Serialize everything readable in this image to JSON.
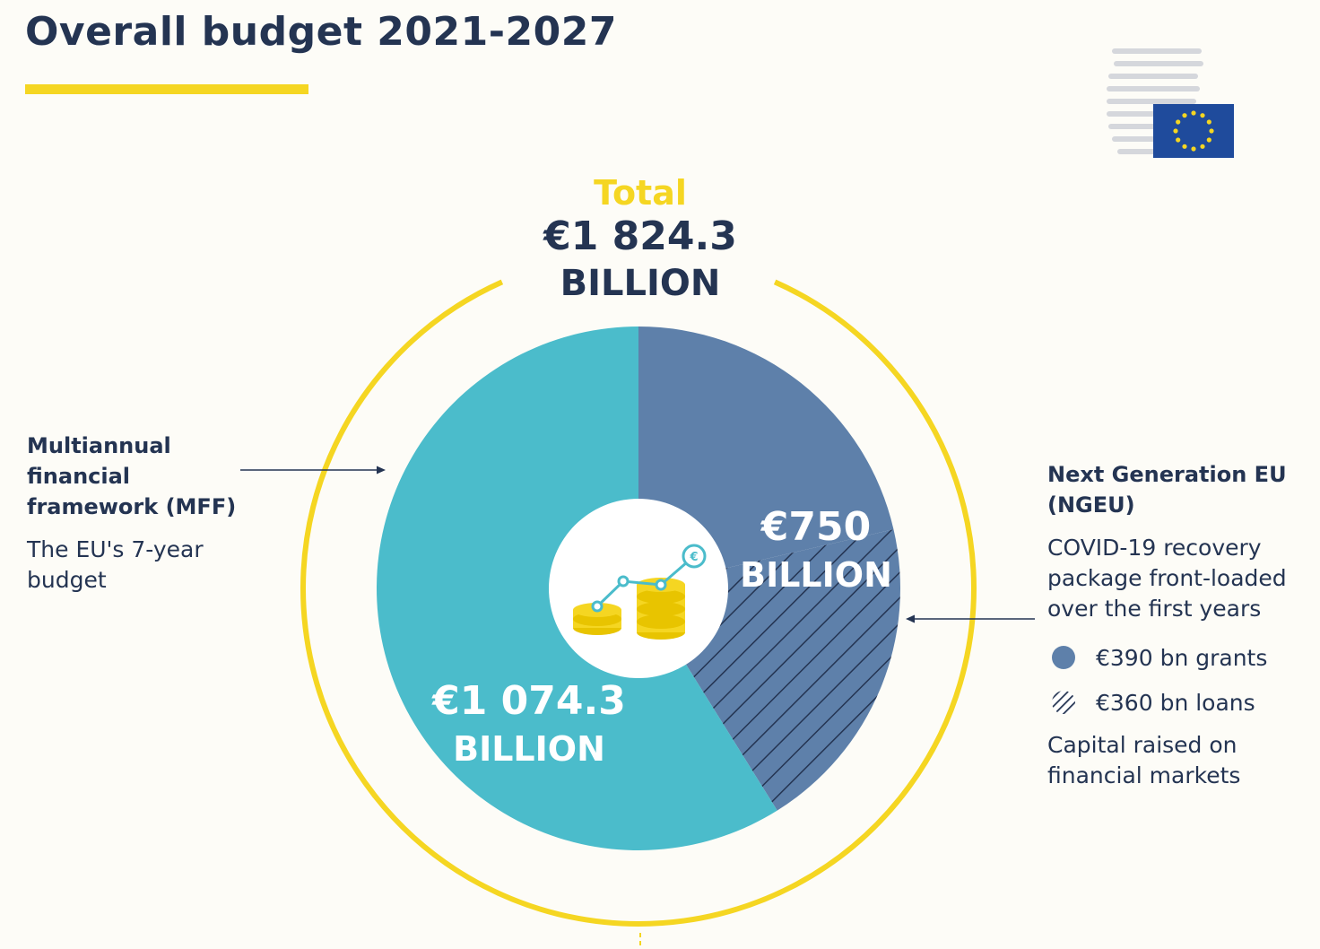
{
  "title": "Overall budget 2021-2027",
  "colors": {
    "navy": "#243452",
    "yellow": "#f5d622",
    "teal": "#4bbccb",
    "blue": "#5e80aa",
    "background": "#fdfcf7"
  },
  "logo": {
    "icon": "eu-council-logo-icon"
  },
  "total": {
    "label": "Total",
    "value": "€1 824.3",
    "unit": "BILLION"
  },
  "center_icon": "coins-growth-icon",
  "mff": {
    "heading": "Multiannual financial framework (MFF)",
    "description": "The EU's 7-year budget",
    "value_label": "€1 074.3",
    "unit": "BILLION"
  },
  "ngeu": {
    "heading": "Next Generation EU (NGEU)",
    "description": "COVID-19 recovery package front-loaded over the first years",
    "value_label": "€750",
    "unit": "BILLION",
    "legend": [
      {
        "text": "€390 bn grants",
        "swatch": "solid",
        "color": "#5e80aa"
      },
      {
        "text": "€360 bn loans",
        "swatch": "hatched",
        "color": "#243452"
      }
    ],
    "note": "Capital raised on financial markets"
  },
  "chart_data": {
    "type": "pie",
    "title": "Overall budget 2021-2027",
    "unit": "€ billion",
    "total": 1824.3,
    "slices": [
      {
        "label": "Multiannual financial framework (MFF)",
        "value": 1074.3,
        "color": "#4bbccb",
        "pattern": "solid"
      },
      {
        "label": "€390 bn grants",
        "value": 390,
        "color": "#5e80aa",
        "pattern": "solid"
      },
      {
        "label": "€360 bn loans",
        "value": 360,
        "color": "#5e80aa",
        "pattern": "hatched"
      }
    ],
    "groups": [
      {
        "label": "Next Generation EU (NGEU)",
        "value": 750,
        "members": [
          "€390 bn grants",
          "€360 bn loans"
        ]
      }
    ]
  }
}
